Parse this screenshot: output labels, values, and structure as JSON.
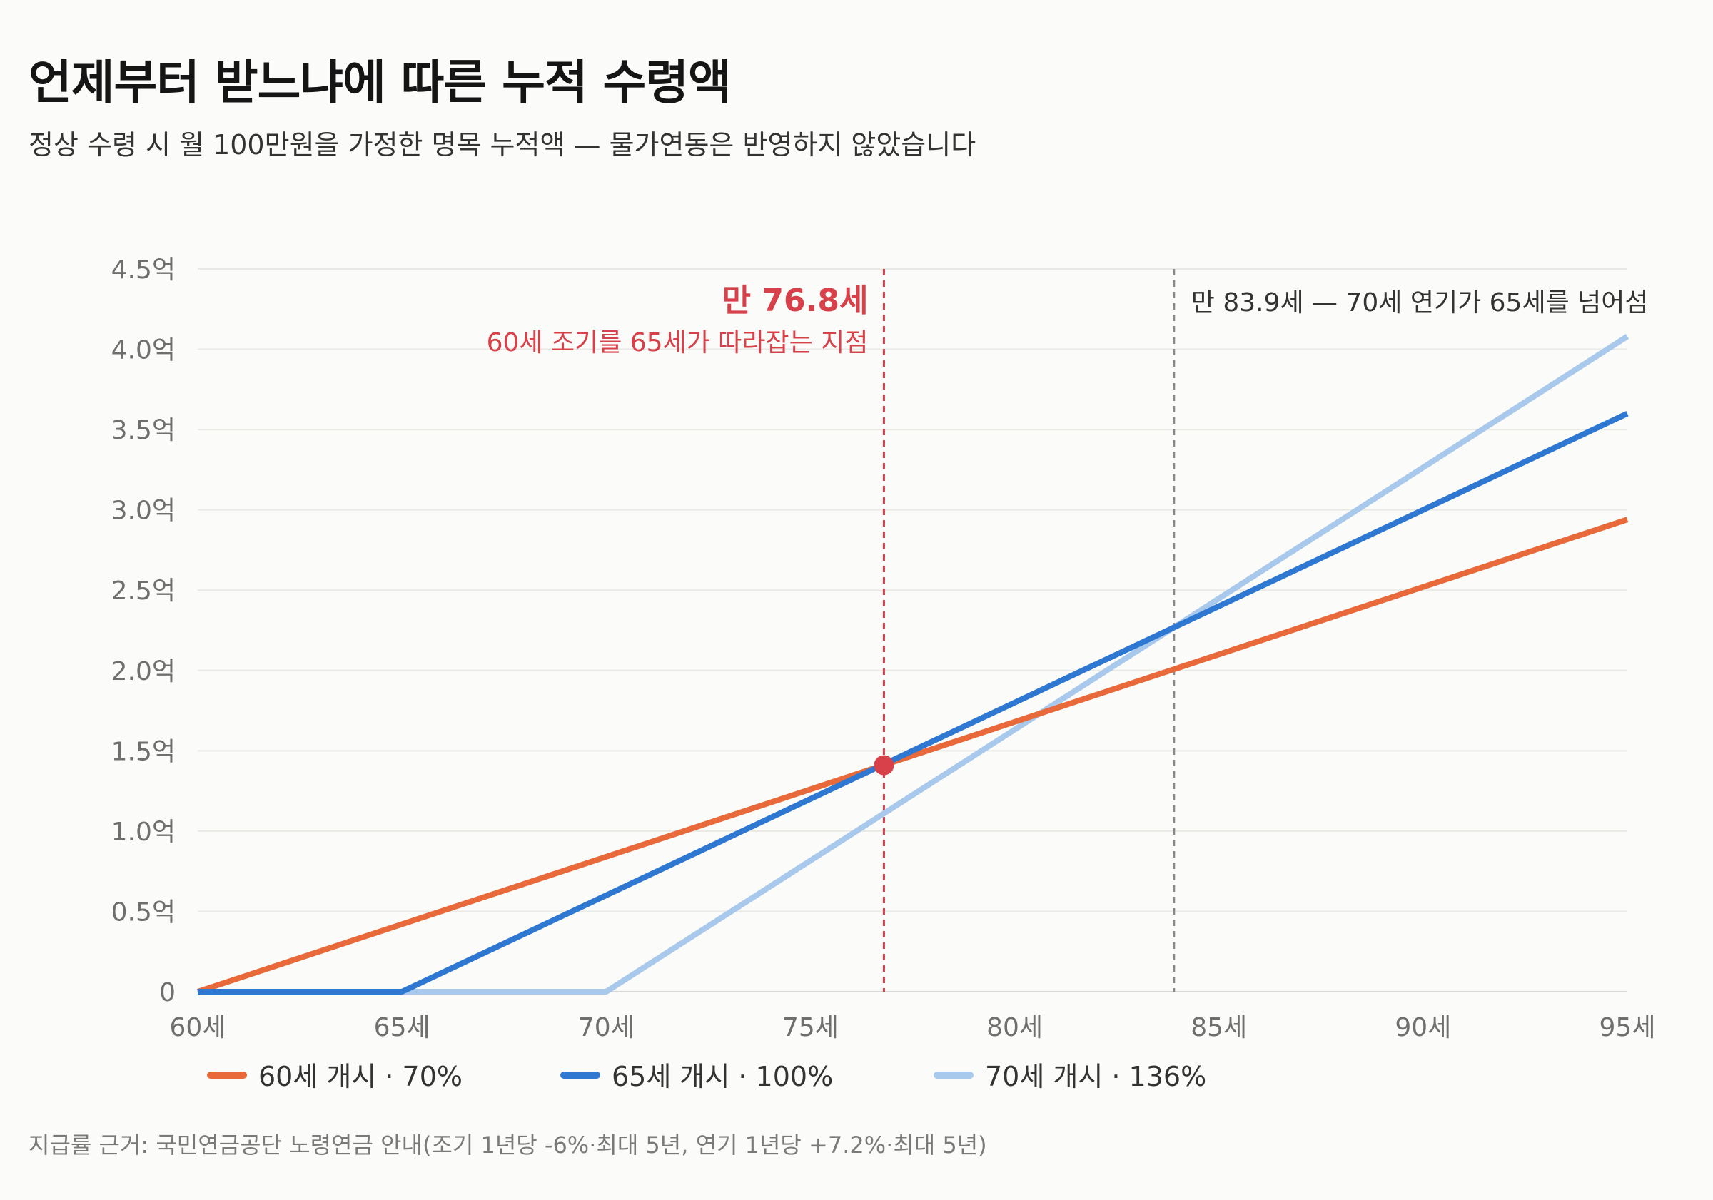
{
  "header": {
    "title": "언제부터 받느냐에 따른 누적 수령액",
    "subtitle": "정상 수령 시 월 100만원을 가정한 명목 누적액 — 물가연동은 반영하지 않았습니다"
  },
  "footnote": "지급률 근거: 국민연금공단 노령연금 안내(조기 1년당 -6%·최대 5년, 연기 1년당 +7.2%·최대 5년)",
  "chart_data": {
    "type": "line",
    "x_unit": "세",
    "y_unit": "억",
    "xlim": [
      60,
      95
    ],
    "ylim": [
      0,
      4.5
    ],
    "x_ticks": [
      60,
      65,
      70,
      75,
      80,
      85,
      90,
      95
    ],
    "x_tick_labels": [
      "60세",
      "65세",
      "70세",
      "75세",
      "80세",
      "85세",
      "90세",
      "95세"
    ],
    "y_ticks": [
      0,
      0.5,
      1.0,
      1.5,
      2.0,
      2.5,
      3.0,
      3.5,
      4.0,
      4.5
    ],
    "y_tick_labels": [
      "0",
      "0.5억",
      "1.0억",
      "1.5억",
      "2.0억",
      "2.5억",
      "3.0억",
      "3.5억",
      "4.0억",
      "4.5억"
    ],
    "grid": true,
    "legend_position": "bottom-left",
    "series": [
      {
        "name": "60세 개시 · 70%",
        "color": "#e8693a",
        "x": [
          60,
          95
        ],
        "y": [
          0,
          2.94
        ]
      },
      {
        "name": "65세 개시 · 100%",
        "color": "#2f78d2",
        "x": [
          60,
          65,
          95
        ],
        "y": [
          0,
          0,
          3.6
        ]
      },
      {
        "name": "70세 개시 · 136%",
        "color": "#a9c9ec",
        "x": [
          60,
          70,
          95
        ],
        "y": [
          0,
          0,
          4.08
        ]
      }
    ],
    "annotations": [
      {
        "x": 76.8,
        "y": 1.41,
        "title": "만 76.8세",
        "text": "60세 조기를 65세가 따라잡는 지점",
        "color": "#d8404a"
      },
      {
        "x": 83.9,
        "text": "만 83.9세 — 70세 연기가 65세를 넘어섬",
        "color": "#888888"
      }
    ]
  }
}
